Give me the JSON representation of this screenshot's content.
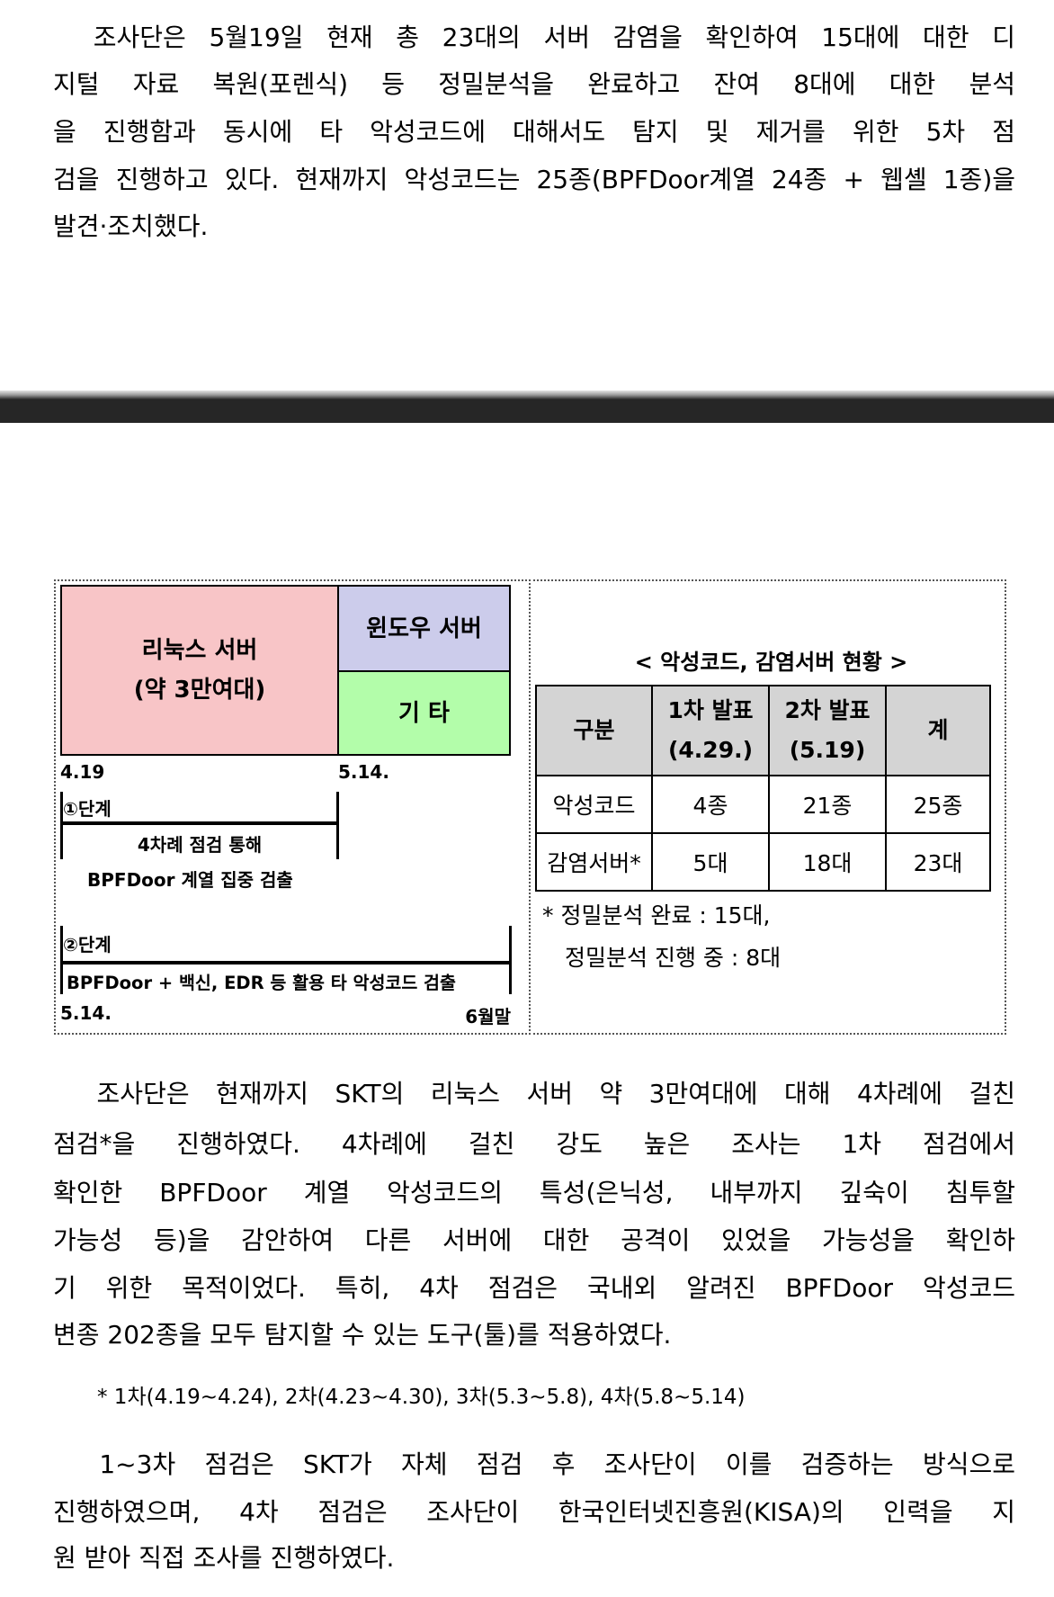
{
  "paragraph1": [
    "　조사단은 5월19일 현재 총 23대의 서버 감염을 확인하여 15대에 대한 디",
    "지털 자료 복원(포렌식) 등 정밀분석을 완료하고 잔여 8대에 대한 분석",
    "을 진행함과 동시에 타 악성코드에 대해서도 탐지 및 제거를 위한 5차 점",
    "검을 진행하고 있다. 현재까지 악성코드는 25종(BPFDoor계열 24종 + 웹셸 1종)을",
    "발견·조치했다."
  ],
  "diagram": {
    "linux_box": [
      "리눅스 서버",
      "(약 3만여대)"
    ],
    "windows_box": "윈도우 서버",
    "other_box": "기 타",
    "colors": {
      "linux": "#f8c5c7",
      "windows": "#cccceb",
      "other": "#b3fdaa"
    },
    "date_start": "4.19",
    "date_mid": "5.14.",
    "stage1": {
      "label": "①단계",
      "text1": "4차례 점검 통해",
      "text2": "BPFDoor 계열 집중 검출"
    },
    "stage2": {
      "label": "②단계",
      "text": "BPFDoor + 백신, EDR 등 활용 타 악성코드 검출",
      "start": "5.14.",
      "end": "6월말"
    }
  },
  "status_table": {
    "title": "< 악성코드, 감염서버 현황 >",
    "headers": [
      "구분",
      "1차 발표",
      "(4.29.)",
      "2차 발표",
      "(5.19)",
      "계"
    ],
    "rows": [
      [
        "악성코드",
        "4종",
        "21종",
        "25종"
      ],
      [
        "감염서버*",
        "5대",
        "18대",
        "23대"
      ]
    ],
    "footnote1": "* 정밀분석 완료 : 15대,",
    "footnote2": "정밀분석 진행 중 : 8대"
  },
  "paragraph2": [
    "　조사단은 현재까지 SKT의 리눅스 서버 약 3만여대에 대해 4차례에 걸친",
    "점검*을 진행하였다. 4차례에 걸친 강도 높은 조사는 1차 점검에서",
    "확인한 BPFDoor 계열 악성코드의 특성(은닉성, 내부까지 깊숙이 침투할",
    "가능성 등)을 감안하여 다른 서버에 대한 공격이 있었을 가능성을 확인하",
    "기 위한 목적이었다. 특히, 4차 점검은 국내외 알려진 BPFDoor 악성코드",
    "변종 202종을 모두 탐지할 수 있는 도구(툴)를 적용하였다."
  ],
  "paragraph2_footnote": "* 1차(4.19~4.24), 2차(4.23~4.30), 3차(5.3~5.8), 4차(5.8~5.14)",
  "paragraph3": [
    "　1~3차 점검은 SKT가 자체 점검 후 조사단이 이를 검증하는 방식으로",
    "진행하였으며, 4차 점검은 조사단이 한국인터넷진흥원(KISA)의 인력을 지",
    "원 받아 직접 조사를 진행하였다."
  ]
}
